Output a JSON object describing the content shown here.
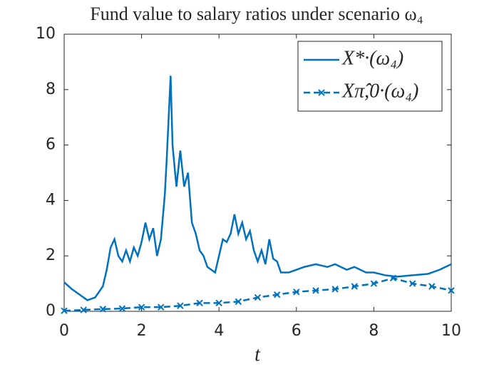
{
  "chart_data": {
    "type": "line",
    "title": "Fund value to salary ratios under scenario ω₄",
    "x_label": "t",
    "xlim": [
      0,
      10
    ],
    "xticks": [
      0,
      2,
      4,
      6,
      8,
      10
    ],
    "ylim": [
      0,
      10
    ],
    "yticks": [
      0,
      2,
      4,
      6,
      8,
      10
    ],
    "legend": "upper right",
    "series": [
      {
        "name": "X*·(ω₄)",
        "color": "#0072bd",
        "style": "solid",
        "marker": "none",
        "x": [
          0,
          0.2,
          0.4,
          0.6,
          0.8,
          1.0,
          1.1,
          1.2,
          1.3,
          1.4,
          1.5,
          1.6,
          1.7,
          1.8,
          1.9,
          2.0,
          2.1,
          2.2,
          2.3,
          2.4,
          2.5,
          2.6,
          2.65,
          2.7,
          2.75,
          2.8,
          2.9,
          3.0,
          3.1,
          3.2,
          3.3,
          3.4,
          3.5,
          3.6,
          3.7,
          3.8,
          3.9,
          4.0,
          4.1,
          4.2,
          4.3,
          4.4,
          4.5,
          4.6,
          4.7,
          4.8,
          4.9,
          5.0,
          5.1,
          5.2,
          5.3,
          5.4,
          5.5,
          5.6,
          5.8,
          6.0,
          6.2,
          6.5,
          6.8,
          7.0,
          7.3,
          7.5,
          7.8,
          8.0,
          8.3,
          8.6,
          9.0,
          9.4,
          9.7,
          10.0
        ],
        "values": [
          1.05,
          0.8,
          0.6,
          0.4,
          0.5,
          0.9,
          1.5,
          2.3,
          2.6,
          2.0,
          1.8,
          2.2,
          1.8,
          2.3,
          2.0,
          2.5,
          3.2,
          2.6,
          3.0,
          2.0,
          2.6,
          4.2,
          5.5,
          7.0,
          8.5,
          6.0,
          4.5,
          5.8,
          4.5,
          5.0,
          3.2,
          2.8,
          2.2,
          2.0,
          1.6,
          1.5,
          1.4,
          2.0,
          2.6,
          2.5,
          2.8,
          3.5,
          2.8,
          3.2,
          2.6,
          2.9,
          2.2,
          1.8,
          2.2,
          1.7,
          2.6,
          1.9,
          1.8,
          1.4,
          1.4,
          1.5,
          1.6,
          1.7,
          1.6,
          1.7,
          1.5,
          1.6,
          1.4,
          1.4,
          1.3,
          1.25,
          1.3,
          1.35,
          1.5,
          1.7
        ]
      },
      {
        "name": "Xπ̂,0·(ω₄)",
        "color": "#0072bd",
        "style": "dashed",
        "marker": "x",
        "x": [
          0,
          0.5,
          1.0,
          1.5,
          2.0,
          2.5,
          3.0,
          3.5,
          4.0,
          4.5,
          5.0,
          5.5,
          6.0,
          6.5,
          7.0,
          7.5,
          8.0,
          8.5,
          9.0,
          9.5,
          10.0
        ],
        "values": [
          0.02,
          0.05,
          0.08,
          0.1,
          0.15,
          0.15,
          0.2,
          0.3,
          0.3,
          0.35,
          0.5,
          0.6,
          0.7,
          0.75,
          0.8,
          0.9,
          1.0,
          1.2,
          1.0,
          0.9,
          0.75
        ]
      }
    ]
  }
}
